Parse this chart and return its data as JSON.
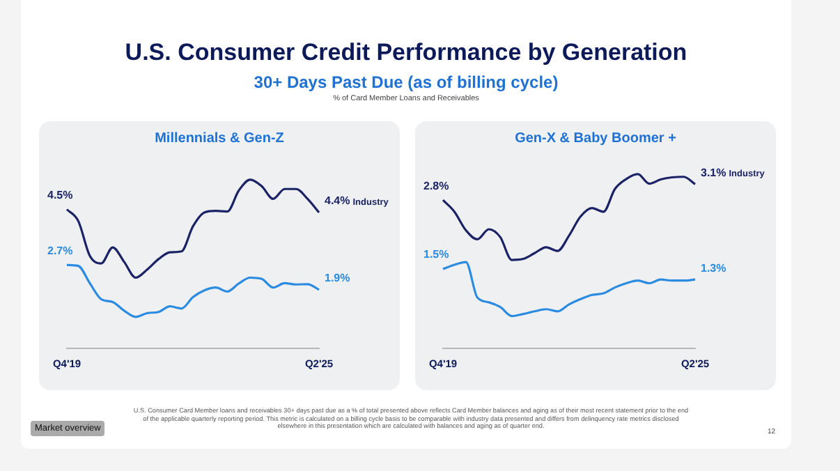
{
  "chart_data": [
    {
      "type": "line",
      "title": "Millennials & Gen-Z",
      "categories": [
        "Q4'19",
        null,
        null,
        null,
        null,
        null,
        null,
        null,
        null,
        null,
        null,
        null,
        null,
        null,
        null,
        null,
        null,
        null,
        null,
        null,
        null,
        null,
        "Q2'25"
      ],
      "series": [
        {
          "name": "Industry",
          "color": "#1b2366",
          "values": [
            4.5,
            4.12,
            3.0,
            2.75,
            3.27,
            2.8,
            2.29,
            2.55,
            2.89,
            3.11,
            3.14,
            3.95,
            4.4,
            4.45,
            4.43,
            5.11,
            5.46,
            5.25,
            4.84,
            5.16,
            5.16,
            4.84,
            4.4
          ],
          "value_labels": [
            "4.5%",
            null,
            null,
            null,
            null,
            null,
            null,
            null,
            null,
            null,
            null,
            null,
            null,
            null,
            null,
            null,
            null,
            null,
            null,
            null,
            null,
            null,
            "4.4%"
          ]
        },
        {
          "color": "#2a8be0",
          "values": [
            2.7,
            2.67,
            2.11,
            1.59,
            1.5,
            1.22,
            1.02,
            1.14,
            1.18,
            1.36,
            1.29,
            1.66,
            1.88,
            1.97,
            1.84,
            2.1,
            2.29,
            2.25,
            1.97,
            2.11,
            2.07,
            2.08,
            1.9
          ],
          "value_labels": [
            "2.7%",
            null,
            null,
            null,
            null,
            null,
            null,
            null,
            null,
            null,
            null,
            null,
            null,
            null,
            null,
            null,
            null,
            null,
            null,
            null,
            null,
            null,
            "1.9%"
          ]
        }
      ],
      "tick_labels": "x",
      "grid": false,
      "legend": false,
      "annotations": [
        "U.S. Consumer Credit Performance by Generation",
        "30+ Days Past Due (as of billing cycle)",
        "% of Card Member Loans and Receivables",
        "U.S. Consumer Card Member loans and receivables 30+ days past due as a % of total presented above reflects Card Member balances and aging as of their most recent statement prior to the end of the applicable quarterly reporting period. This metric is calculated on a billing cycle basis to be comparable with industry data presented and differs from delinquency rate metrics disclosed elsewhere in this presentation which are calculated with balances and aging as of quarter end.",
        "Market overview",
        "12"
      ]
    },
    {
      "type": "line",
      "title": "Gen-X & Baby Boomer +",
      "categories": [
        "Q4'19",
        null,
        null,
        null,
        null,
        null,
        null,
        null,
        null,
        null,
        null,
        null,
        null,
        null,
        null,
        null,
        null,
        null,
        null,
        null,
        null,
        null,
        "Q2'25"
      ],
      "series": [
        {
          "name": "Industry",
          "color": "#1b2366",
          "values": [
            2.8,
            2.58,
            2.23,
            2.06,
            2.25,
            2.1,
            1.67,
            1.69,
            1.8,
            1.91,
            1.84,
            2.13,
            2.49,
            2.65,
            2.58,
            3.01,
            3.2,
            3.29,
            3.11,
            3.19,
            3.23,
            3.24,
            3.1
          ],
          "value_labels": [
            "2.8%",
            null,
            null,
            null,
            null,
            null,
            null,
            null,
            null,
            null,
            null,
            null,
            null,
            null,
            null,
            null,
            null,
            null,
            null,
            null,
            null,
            null,
            "3.1%"
          ]
        },
        {
          "color": "#2a8be0",
          "values": [
            1.5,
            1.58,
            1.63,
            0.96,
            0.87,
            0.78,
            0.61,
            0.65,
            0.7,
            0.74,
            0.7,
            0.83,
            0.93,
            1.01,
            1.04,
            1.15,
            1.23,
            1.28,
            1.23,
            1.3,
            1.28,
            1.28,
            1.3
          ],
          "value_labels": [
            "1.5%",
            null,
            null,
            null,
            null,
            null,
            null,
            null,
            null,
            null,
            null,
            null,
            null,
            null,
            null,
            null,
            null,
            null,
            null,
            null,
            null,
            null,
            "1.3%"
          ]
        }
      ],
      "tick_labels": "x",
      "grid": false,
      "legend": false
    }
  ]
}
